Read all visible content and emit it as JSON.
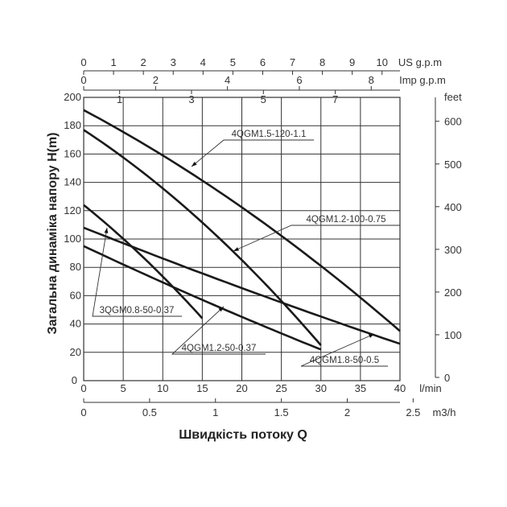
{
  "chart_data": {
    "type": "line",
    "xlabel": "Швидкість потоку Q",
    "ylabel": "Загальна динаміка напору H(m)",
    "xlim": [
      0,
      40
    ],
    "ylim": [
      0,
      200
    ],
    "x_unit": "l/min",
    "grid": true,
    "primary_x_ticks": [
      "0",
      "5",
      "10",
      "15",
      "20",
      "25",
      "30",
      "35",
      "40"
    ],
    "primary_y_ticks": [
      "20",
      "40",
      "60",
      "80",
      "100",
      "120",
      "140",
      "160",
      "180",
      "200"
    ],
    "secondary_axes": {
      "us_gpm": {
        "label": "US g.p.m",
        "ticks": [
          "0",
          "1",
          "2",
          "3",
          "4",
          "5",
          "6",
          "7",
          "8",
          "9",
          "10"
        ],
        "max": 10.6
      },
      "imp_gpm": {
        "label": "Imp g.p.m",
        "ticks": [
          "0",
          "2",
          "4",
          "6",
          "8"
        ],
        "minor_ticks": [
          "1",
          "3",
          "5",
          "7"
        ],
        "max": 8.8
      },
      "feet": {
        "label": "feet",
        "ticks": [
          "0",
          "100",
          "200",
          "300",
          "400",
          "500",
          "600"
        ],
        "max": 656
      },
      "m3h": {
        "label": "m3/h",
        "ticks": [
          "0",
          "0.5",
          "1",
          "1.5",
          "2",
          "2.5"
        ],
        "max": 2.4
      }
    },
    "series": [
      {
        "name": "4QGM1.5-120-1.1",
        "x": [
          0,
          40
        ],
        "y": [
          191,
          35
        ],
        "curve": 0.06
      },
      {
        "name": "4QGM1.2-100-0.75",
        "x": [
          0,
          30
        ],
        "y": [
          177,
          25
        ],
        "curve": 0.07
      },
      {
        "name": "3QGM0.8-50-0.37",
        "x": [
          0,
          15
        ],
        "y": [
          124,
          44
        ],
        "curve": 0.04
      },
      {
        "name": "4QGM1.2-50-0.37",
        "x": [
          0,
          30
        ],
        "y": [
          95,
          22
        ],
        "curve": -0.02
      },
      {
        "name": "4QGM1.8-50-0.5",
        "x": [
          0,
          40
        ],
        "y": [
          108,
          26
        ],
        "curve": -0.02
      }
    ],
    "curve_labels": [
      {
        "text": "4QGM1.5-120-1.1"
      },
      {
        "text": "4QGM1.2-100-0.75"
      },
      {
        "text": "3QGM0.8-50-0.37"
      },
      {
        "text": "4QGM1.2-50-0.37"
      },
      {
        "text": "4QGM1.8-50-0.5"
      }
    ]
  }
}
